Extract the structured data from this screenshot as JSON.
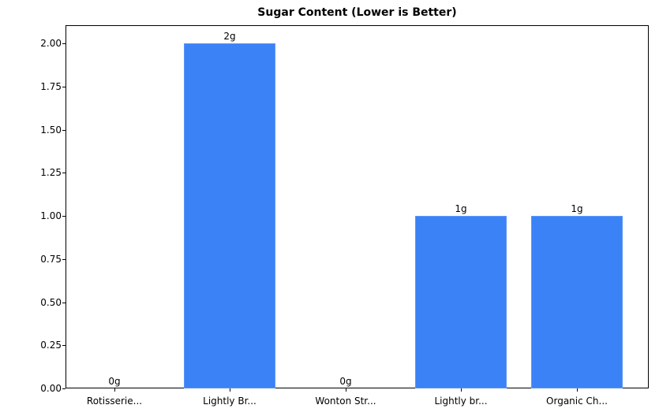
{
  "chart_data": {
    "type": "bar",
    "title": "Sugar Content (Lower is Better)",
    "xlabel": "",
    "ylabel": "",
    "categories": [
      "Rotisserie...",
      "Lightly Br...",
      "Wonton Str...",
      "Lightly br...",
      "Organic Ch..."
    ],
    "values": [
      0,
      2,
      0,
      1,
      1
    ],
    "value_labels": [
      "0g",
      "2g",
      "0g",
      "1g",
      "1g"
    ],
    "ylim": [
      0,
      2.1
    ],
    "yticks": [
      "0.00",
      "0.25",
      "0.50",
      "0.75",
      "1.00",
      "1.25",
      "1.50",
      "1.75",
      "2.00"
    ],
    "grid": false,
    "bar_color": "#3b82f6"
  }
}
